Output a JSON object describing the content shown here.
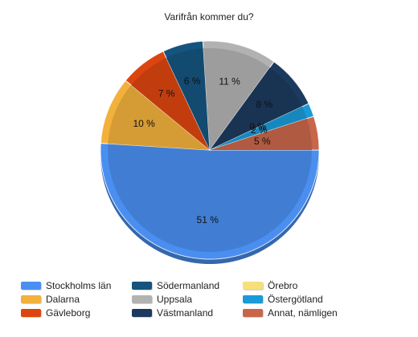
{
  "chart_data": {
    "type": "pie",
    "title": "Varifrån kommer du?",
    "legend_position": "bottom",
    "slices": [
      {
        "label": "Stockholms län",
        "value": 51,
        "display": "51 %",
        "color": "#4a8ff0"
      },
      {
        "label": "Dalarna",
        "value": 10,
        "display": "10 %",
        "color": "#f2b13c"
      },
      {
        "label": "Gävleborg",
        "value": 7,
        "display": "7 %",
        "color": "#dc4510"
      },
      {
        "label": "Södermanland",
        "value": 6,
        "display": "6 %",
        "color": "#15547f"
      },
      {
        "label": "Uppsala",
        "value": 11,
        "display": "11 %",
        "color": "#b2b2b2"
      },
      {
        "label": "Västmanland",
        "value": 8,
        "display": "8 %",
        "color": "#1c3a5e"
      },
      {
        "label": "Örebro",
        "value": 0,
        "display": "0 %",
        "color": "#f7df7a"
      },
      {
        "label": "Östergötland",
        "value": 2,
        "display": "2 %",
        "color": "#1a9ad8"
      },
      {
        "label": "Annat, nämligen",
        "value": 5,
        "display": "5 %",
        "color": "#c8664a"
      }
    ]
  }
}
